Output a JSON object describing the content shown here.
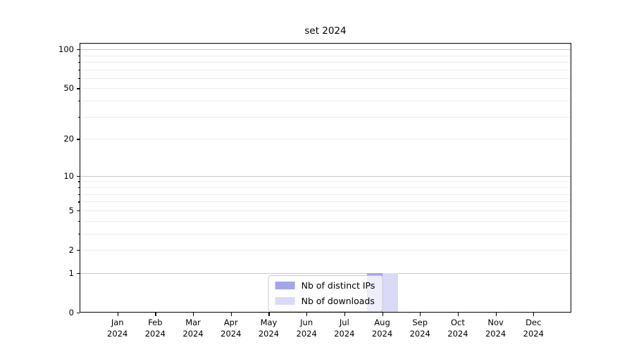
{
  "title": "set 2024",
  "legend": {
    "items": [
      {
        "label": "Nb of distinct IPs",
        "color": "#a5a5e8"
      },
      {
        "label": "Nb of downloads",
        "color": "#dadaf6"
      }
    ]
  },
  "colors": {
    "major_gridline": "#c8c8c8",
    "minor_gridline": "#ededed",
    "axis": "#000000"
  },
  "chart_data": {
    "type": "bar",
    "title": "set 2024",
    "categories": [
      "Jan 2024",
      "Feb 2024",
      "Mar 2024",
      "Apr 2024",
      "May 2024",
      "Jun 2024",
      "Jul 2024",
      "Aug 2024",
      "Sep 2024",
      "Oct 2024",
      "Nov 2024",
      "Dec 2024"
    ],
    "series": [
      {
        "name": "Nb of distinct IPs",
        "color": "#a5a5e8",
        "values": [
          0,
          0,
          0,
          0,
          0,
          0,
          0,
          1,
          0,
          0,
          0,
          0
        ]
      },
      {
        "name": "Nb of downloads",
        "color": "#dadaf6",
        "values": [
          0,
          0,
          0,
          0,
          0,
          0,
          0,
          1,
          0,
          0,
          0,
          0
        ]
      }
    ],
    "xlabel": "",
    "ylabel": "",
    "yscale": "log1p",
    "ylim": [
      0,
      112
    ],
    "y_labeled_ticks": [
      0,
      1,
      2,
      5,
      10,
      20,
      50,
      100
    ],
    "y_major_grid": [
      1,
      10,
      100
    ],
    "y_minor_grid": [
      2,
      3,
      4,
      5,
      6,
      7,
      8,
      9,
      20,
      30,
      40,
      50,
      60,
      70,
      80,
      90
    ],
    "grid": true,
    "legend_position": "lower center"
  }
}
